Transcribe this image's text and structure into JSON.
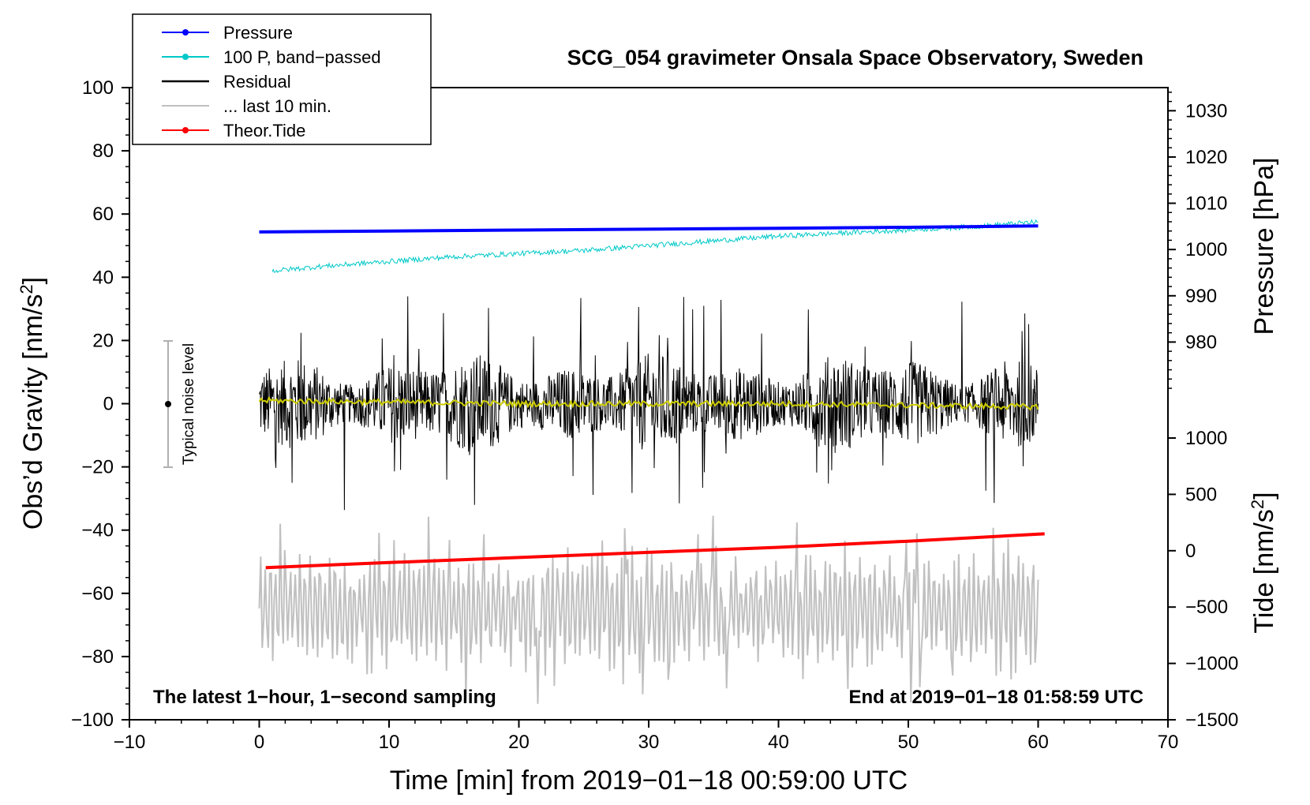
{
  "chart_data": {
    "type": "line",
    "title": "SCG_054 gravimeter Onsala Space Observatory, Sweden",
    "xlabel": "Time [min] from 2019−01−18 00:59:00 UTC",
    "ylabel_left": "Obs’d Gravity [nm/s²]",
    "ylabel_right_top": "Pressure [hPa]",
    "ylabel_right_bottom": "Tide [nm/s²]",
    "xlim": [
      -10,
      70
    ],
    "ylim": [
      -100,
      100
    ],
    "x_ticks": [
      "−10",
      "0",
      "10",
      "20",
      "30",
      "40",
      "50",
      "60",
      "70"
    ],
    "y_ticks": [
      "100",
      "80",
      "60",
      "40",
      "20",
      "0",
      "−20",
      "−40",
      "−60",
      "−80",
      "−100"
    ],
    "pressure_axis": {
      "range_hpa": [
        970,
        1035
      ],
      "ticks": [
        "1030",
        "1020",
        "1010",
        "1000",
        "990",
        "980"
      ]
    },
    "tide_axis": {
      "range": [
        -1500,
        1000
      ],
      "ticks": [
        "1000",
        "500",
        "0",
        "−500",
        "−1000",
        "−1500"
      ]
    },
    "notes": {
      "bottom_left": "The latest 1−hour, 1−second sampling",
      "bottom_right": "End at 2019−01−18 01:58:59 UTC"
    },
    "noise_indicator": {
      "label": "Typical noise level",
      "x": -7,
      "center": 0,
      "half_range": 20
    },
    "legend": [
      {
        "label": "Pressure",
        "color": "#0000ff",
        "marker": true
      },
      {
        "label": "100 P, band−passed",
        "color": "#00c8c8",
        "marker": true
      },
      {
        "label": "Residual",
        "color": "#000000",
        "marker": false
      },
      {
        "label": "... last 10 min.",
        "color": "#c0c0c0",
        "marker": false
      },
      {
        "label": "Theor.Tide",
        "color": "#ff0000",
        "marker": true
      }
    ],
    "series": [
      {
        "name": "Pressure",
        "axis": "pressure_hpa",
        "color": "#0000ff",
        "x": [
          0,
          10,
          20,
          30,
          40,
          50,
          60
        ],
        "y": [
          1003.8,
          1004.0,
          1004.2,
          1004.4,
          1004.6,
          1004.8,
          1005.1
        ]
      },
      {
        "name": "100 P, band−passed",
        "axis": "left",
        "color": "#00c8c8",
        "x": [
          1,
          5,
          10,
          15,
          20,
          25,
          30,
          35,
          40,
          45,
          50,
          55,
          60
        ],
        "y": [
          42,
          43.5,
          45,
          46.5,
          47.5,
          48.5,
          50,
          51.5,
          53,
          54,
          55,
          56,
          57.5
        ],
        "noise_amplitude": 0.8
      },
      {
        "name": "Residual",
        "axis": "left",
        "color": "#000000",
        "x_range": [
          0,
          60
        ],
        "center": 0,
        "typical_amplitude": 15,
        "peak_max": 34,
        "peak_min": -36
      },
      {
        "name": "Residual, smoothed",
        "axis": "left",
        "color": "#cccc00",
        "x": [
          0,
          10,
          20,
          30,
          40,
          50,
          60
        ],
        "y": [
          1,
          0.5,
          0,
          0,
          0,
          -0.5,
          -1
        ]
      },
      {
        "name": "... last 10 min.",
        "axis": "left",
        "color": "#c0c0c0",
        "x_range": [
          0,
          60
        ],
        "center": -65,
        "typical_amplitude": 12,
        "peak_max": -34,
        "peak_min": -95
      },
      {
        "name": "Theor.Tide",
        "axis": "tide",
        "color": "#ff0000",
        "x": [
          0.5,
          10,
          20,
          30,
          40,
          50,
          60.5
        ],
        "y": [
          -150,
          -105,
          -60,
          -15,
          30,
          85,
          150
        ]
      }
    ]
  }
}
